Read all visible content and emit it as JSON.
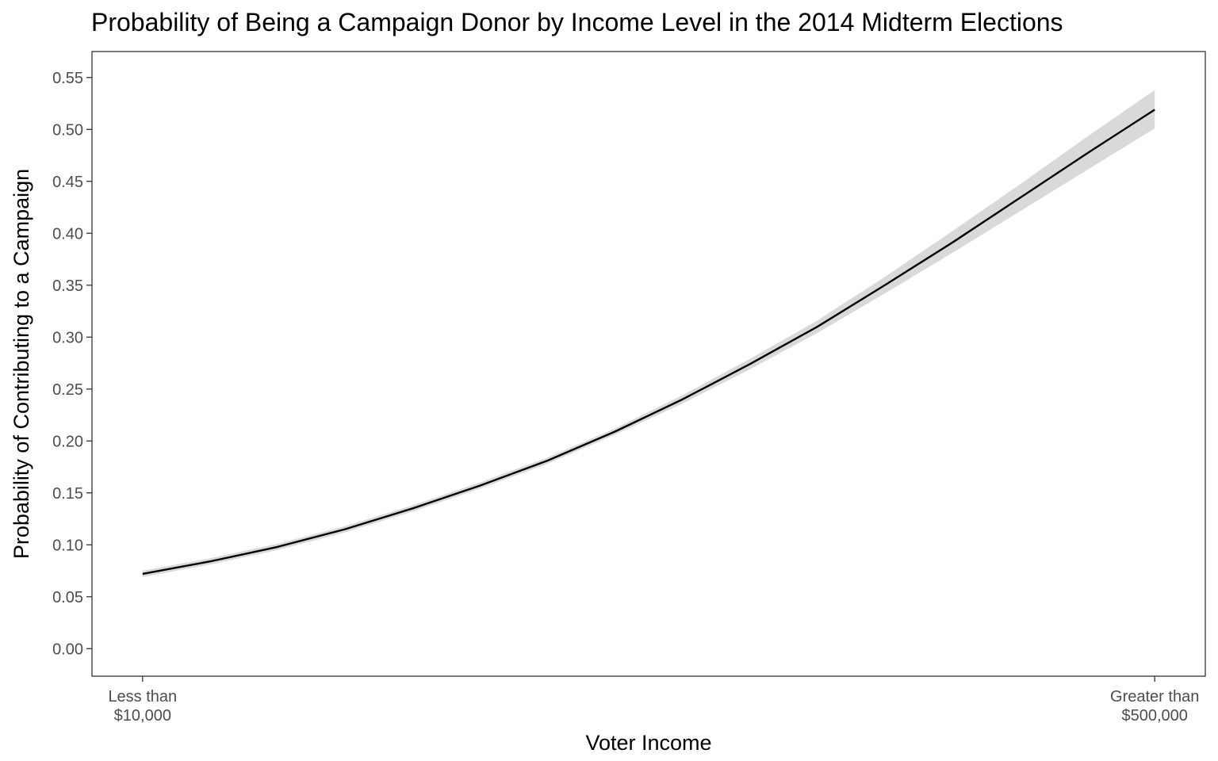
{
  "chart_data": {
    "type": "line",
    "title": "Probability of Being a Campaign Donor by Income Level in the 2014 Midterm Elections",
    "xlabel": "Voter Income",
    "ylabel": "Probability of Contributing to a Campaign",
    "x_tick_labels": [
      {
        "at": 1,
        "lines": [
          "Less than",
          "$10,000"
        ]
      },
      {
        "at": 16,
        "lines": [
          "Greater than",
          "$500,000"
        ]
      }
    ],
    "xlim": [
      0.25,
      16.75
    ],
    "ylim": [
      -0.0265,
      0.575
    ],
    "yticks": [
      0.0,
      0.05,
      0.1,
      0.15,
      0.2,
      0.25,
      0.3,
      0.35,
      0.4,
      0.45,
      0.5,
      0.55
    ],
    "ytick_labels": [
      "0.00",
      "0.05",
      "0.10",
      "0.15",
      "0.20",
      "0.25",
      "0.30",
      "0.35",
      "0.40",
      "0.45",
      "0.50",
      "0.55"
    ],
    "grid": false,
    "legend": "none",
    "series": [
      {
        "x": [
          1,
          2,
          3,
          4,
          5,
          6,
          7,
          8,
          9,
          10,
          11,
          12,
          13,
          14,
          15,
          16
        ],
        "values": [
          0.072,
          0.084,
          0.098,
          0.115,
          0.135,
          0.157,
          0.181,
          0.209,
          0.24,
          0.274,
          0.31,
          0.35,
          0.391,
          0.434,
          0.477,
          0.519
        ],
        "lower": [
          0.069,
          0.081,
          0.095,
          0.112,
          0.132,
          0.154,
          0.178,
          0.206,
          0.236,
          0.269,
          0.304,
          0.342,
          0.381,
          0.421,
          0.461,
          0.501
        ],
        "upper": [
          0.075,
          0.087,
          0.101,
          0.118,
          0.138,
          0.16,
          0.184,
          0.212,
          0.244,
          0.279,
          0.316,
          0.358,
          0.402,
          0.447,
          0.493,
          0.538
        ]
      }
    ],
    "colors": {
      "line": "#000000",
      "band": "#d9d9d9",
      "panel_border": "#333333",
      "tick": "#333333"
    }
  }
}
